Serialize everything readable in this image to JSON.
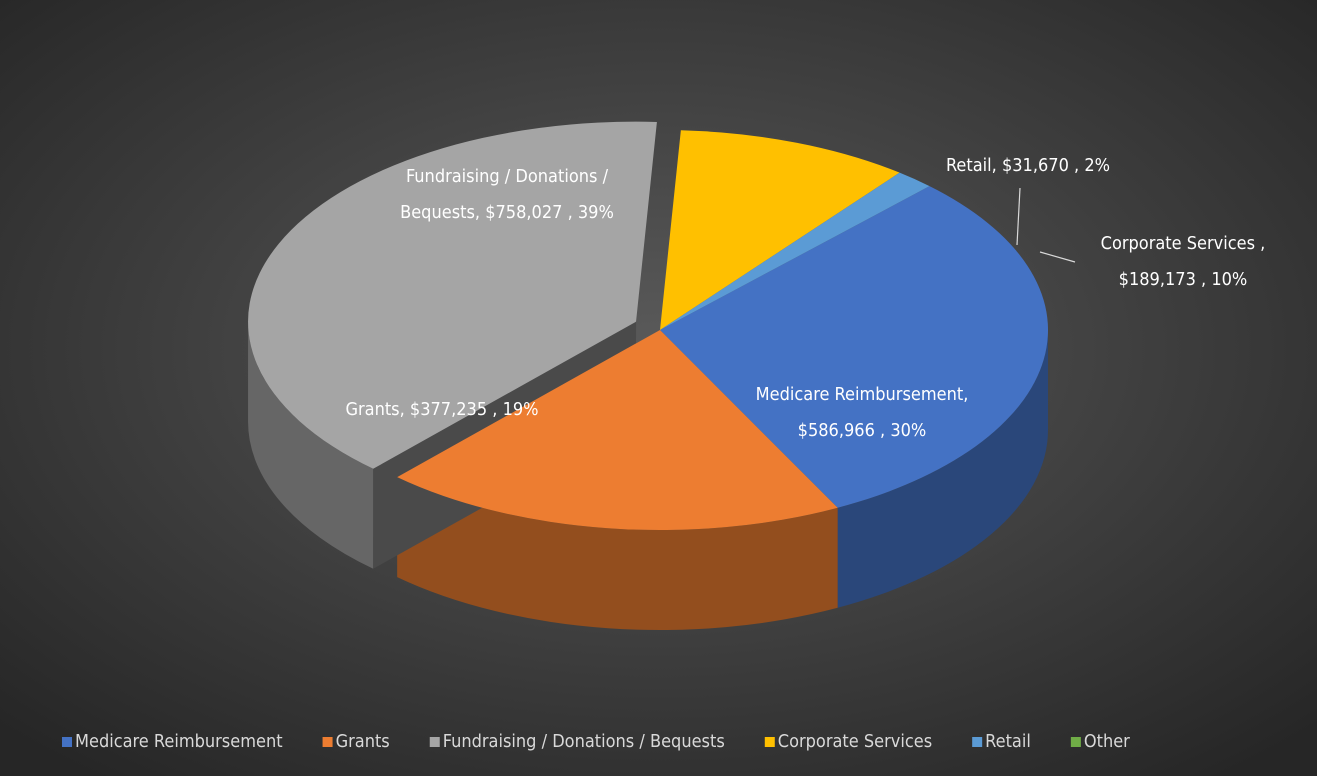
{
  "chart_data": {
    "type": "pie",
    "categories": [
      "Medicare Reimbursement",
      "Grants",
      "Fundraising / Donations / Bequests",
      "Corporate Services",
      "Retail",
      "Other"
    ],
    "values": [
      586966,
      377235,
      758027,
      189173,
      31670,
      0
    ],
    "value_labels": [
      [
        "Medicare Reimbursement,",
        "$586,966 , 30%"
      ],
      [
        "Grants,  $377,235 , 19%"
      ],
      [
        "Fundraising / Donations /",
        "Bequests,  $758,027 , 39%"
      ],
      [
        "Corporate Services ,",
        "$189,173 , 10%"
      ],
      [
        "Retail,  $31,670 , 2%"
      ],
      null
    ],
    "colors": [
      "#4472c4",
      "#ed7d31",
      "#a5a5a5",
      "#ffc000",
      "#5b9bd5",
      "#70ad47"
    ],
    "legend": "bottom"
  }
}
